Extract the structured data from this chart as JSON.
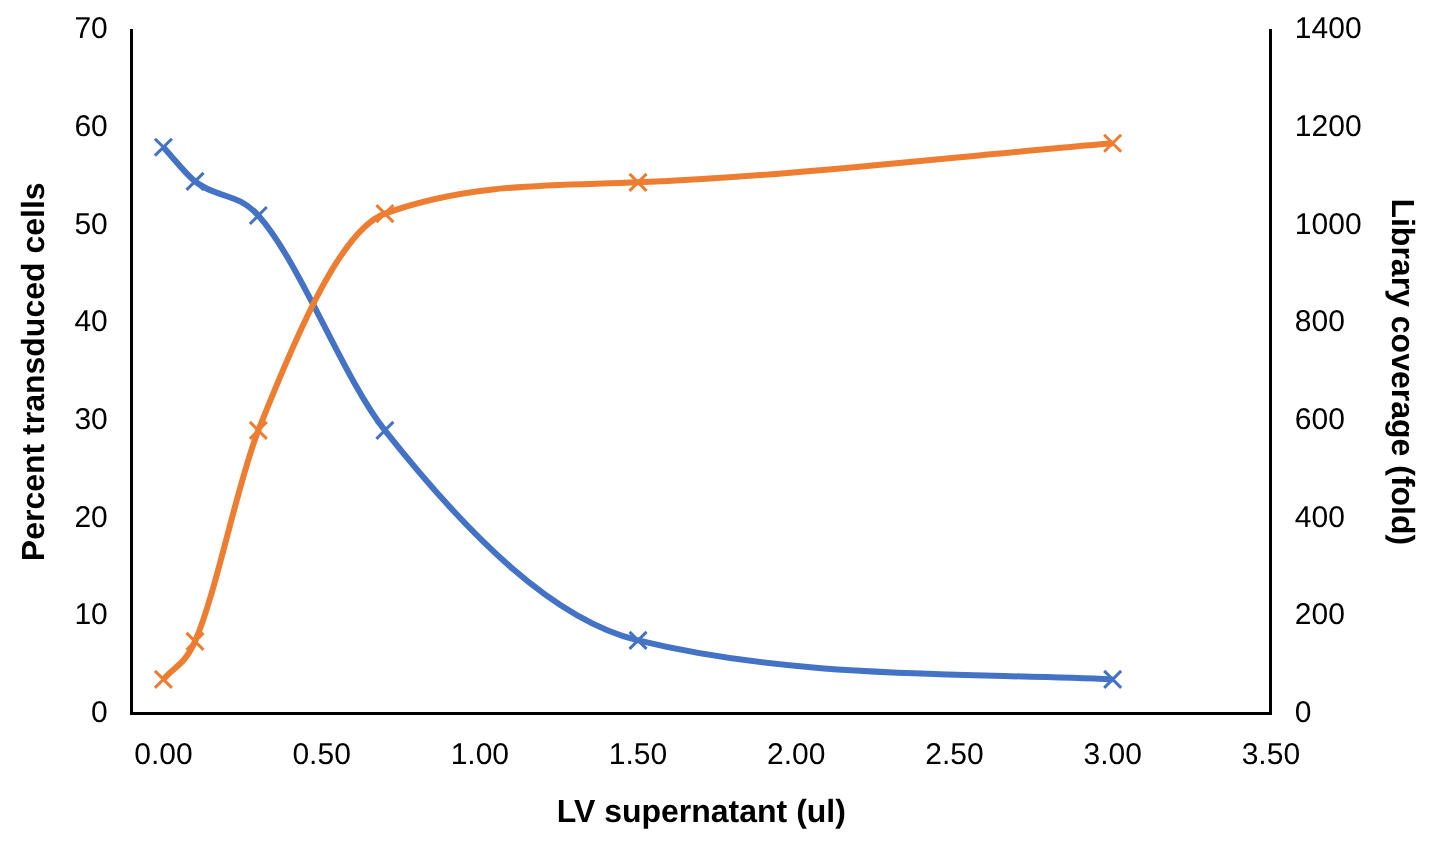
{
  "chart_data": {
    "type": "line",
    "xlabel": "LV supernatant (ul)",
    "ylabel": "Percent transduced cells",
    "y2label": "Library coverage (fold)",
    "series": [
      {
        "color": "#ed7d31",
        "x": [
          0,
          0.1,
          0.3,
          0.7,
          1.5,
          3.0
        ],
        "values": [
          3.5,
          7.4,
          29,
          51.2,
          54.4,
          58.4
        ]
      },
      {
        "color": "#4472c4",
        "axis": "y2",
        "x": [
          0,
          0.1,
          0.3,
          0.7,
          1.5,
          3.0
        ],
        "values": [
          1160,
          1090,
          1020,
          580,
          150,
          70
        ]
      }
    ],
    "xlim": [
      -0.1,
      3.5
    ],
    "xticks": [
      {
        "value": 0,
        "label": "0.00"
      },
      {
        "value": 0.5,
        "label": "0.50"
      },
      {
        "value": 1,
        "label": "1.00"
      },
      {
        "value": 1.5,
        "label": "1.50"
      },
      {
        "value": 2,
        "label": "2.00"
      },
      {
        "value": 2.5,
        "label": "2.50"
      },
      {
        "value": 3,
        "label": "3.00"
      },
      {
        "value": 3.5,
        "label": "3.50"
      }
    ],
    "ylim": [
      0,
      70
    ],
    "yticks": [
      0,
      10,
      20,
      30,
      40,
      50,
      60,
      70
    ],
    "y2lim": [
      0,
      1400
    ],
    "y2ticks": [
      0,
      200,
      400,
      600,
      800,
      1000,
      1200,
      1400
    ],
    "grid": false,
    "legend": false,
    "marker": "cross",
    "line_style": "solid"
  }
}
